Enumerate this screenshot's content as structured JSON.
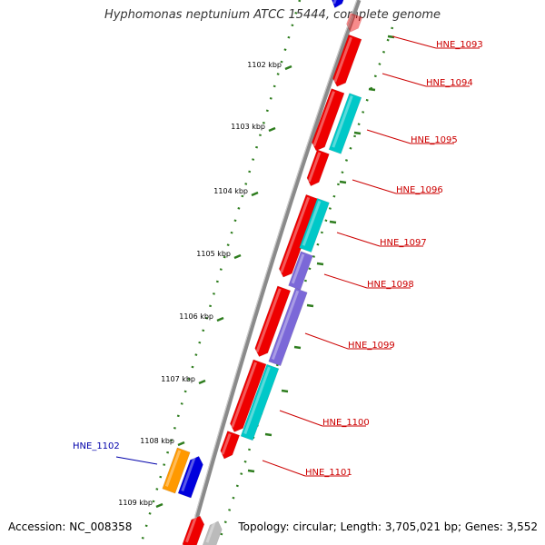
{
  "title": "Hyphomonas neptunium ATCC 15444, complete genome",
  "footer": {
    "accession": "Accession: NC_008358",
    "summary": "Topology: circular; Length: 3,705,021 bp; Genes: 3,552"
  },
  "colors": {
    "backbone": "#888888",
    "ruler": "#2e7d1e",
    "label_red": "#cc0000",
    "label_blue": "#0000aa",
    "forward_gene": "#ee0000",
    "reverse_gene_cyan": "#00c8c8",
    "reverse_gene_purple": "#7b68d8",
    "orange_gene": "#ff9900",
    "blue_gene": "#0000dd",
    "gray_gene": "#bbbbbb"
  },
  "ruler_ticks": [
    "1102 kbp",
    "1103 kbp",
    "1104 kbp",
    "1105 kbp",
    "1106 kbp",
    "1107 kbp",
    "1108 kbp",
    "1109 kbp"
  ],
  "gene_labels": [
    {
      "text": "HNE_1093",
      "color": "red"
    },
    {
      "text": "HNE_1094",
      "color": "red"
    },
    {
      "text": "HNE_1095",
      "color": "red"
    },
    {
      "text": "HNE_1096",
      "color": "red"
    },
    {
      "text": "HNE_1097",
      "color": "red"
    },
    {
      "text": "HNE_1098",
      "color": "red"
    },
    {
      "text": "HNE_1099",
      "color": "red"
    },
    {
      "text": "HNE_1100",
      "color": "red"
    },
    {
      "text": "HNE_1101",
      "color": "red"
    },
    {
      "text": "HNE_1102",
      "color": "blue"
    }
  ]
}
